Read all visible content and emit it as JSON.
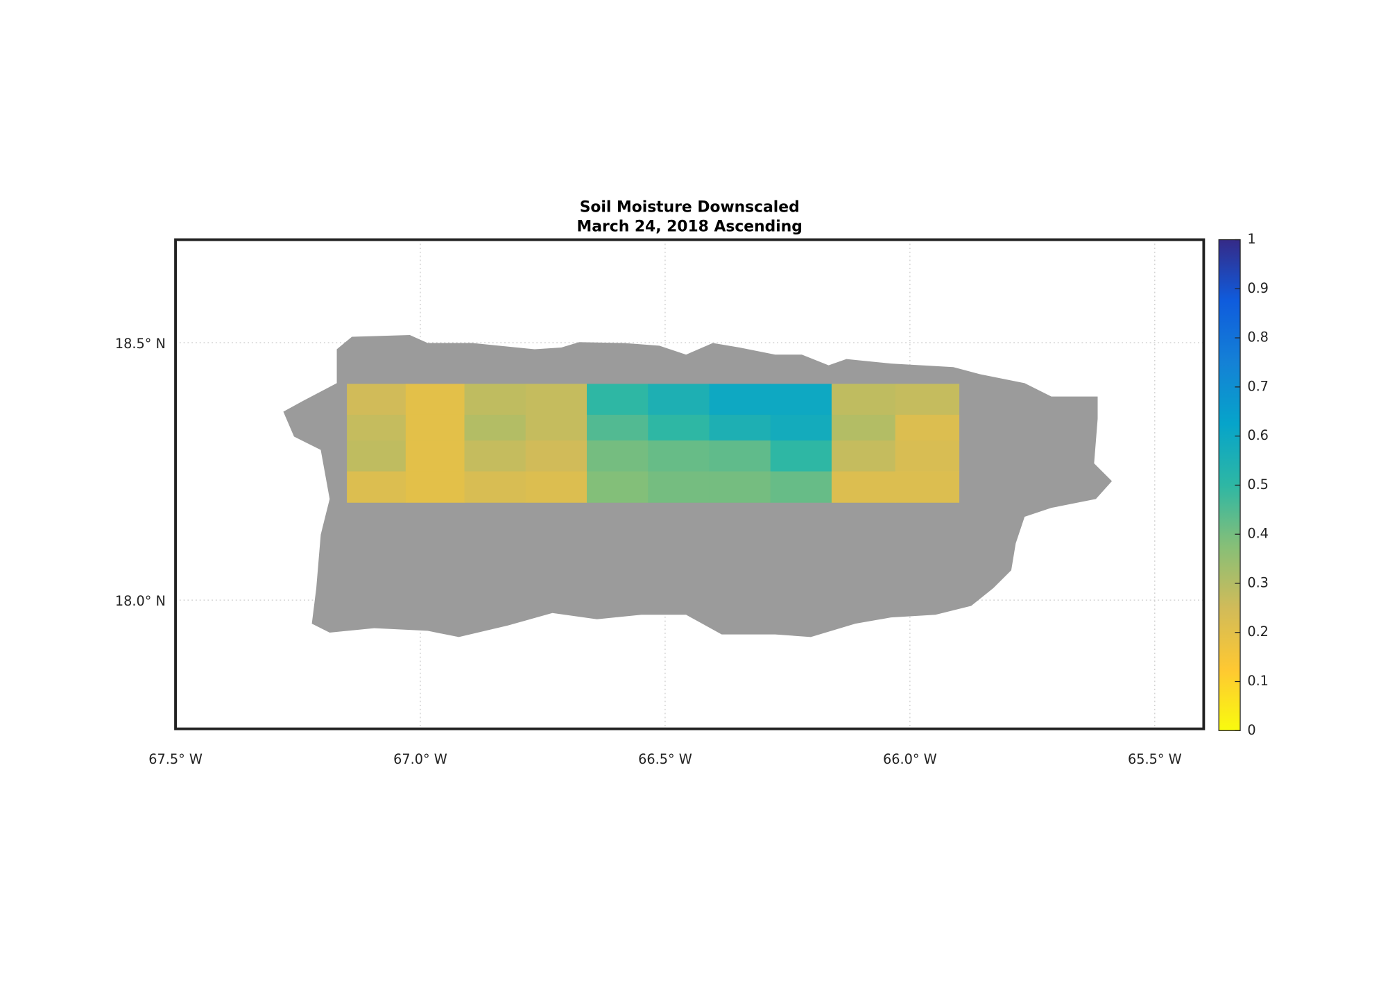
{
  "chart_data": {
    "type": "grid-map",
    "title": [
      "Soil Moisture Downscaled",
      "March 24, 2018 Ascending"
    ],
    "xlim": [
      -67.5,
      -65.4
    ],
    "ylim": [
      17.75,
      18.7
    ],
    "xticks": [
      {
        "value": -67.5,
        "label": "67.5° W"
      },
      {
        "value": -67.0,
        "label": "67.0° W"
      },
      {
        "value": -66.5,
        "label": "66.5° W"
      },
      {
        "value": -66.0,
        "label": "66.0° W"
      },
      {
        "value": -65.5,
        "label": "65.5° W"
      }
    ],
    "yticks": [
      {
        "value": 18.0,
        "label": "18.0° N"
      },
      {
        "value": 18.5,
        "label": "18.5° N"
      }
    ],
    "grid": true,
    "land_color": "#9b9b9b",
    "cells": {
      "lon_edges": [
        -67.15,
        -67.03,
        -66.91,
        -66.785,
        -66.66,
        -66.535,
        -66.41,
        -66.285,
        -66.16,
        -66.03,
        -65.9
      ],
      "lat_edges": [
        18.42,
        18.36,
        18.31,
        18.25,
        18.19
      ],
      "values": [
        [
          0.25,
          0.2,
          0.28,
          0.27,
          0.5,
          0.55,
          0.6,
          0.6,
          0.28,
          0.27
        ],
        [
          0.27,
          0.2,
          0.3,
          0.27,
          0.45,
          0.5,
          0.55,
          0.58,
          0.3,
          0.22
        ],
        [
          0.28,
          0.2,
          0.27,
          0.25,
          0.4,
          0.42,
          0.43,
          0.5,
          0.27,
          0.23
        ],
        [
          0.22,
          0.2,
          0.23,
          0.22,
          0.38,
          0.4,
          0.4,
          0.42,
          0.22,
          0.22
        ]
      ]
    },
    "clim": [
      0,
      1
    ],
    "cticks": [
      0,
      0.1,
      0.2,
      0.3,
      0.4,
      0.5,
      0.6,
      0.7,
      0.8,
      0.9,
      1
    ],
    "colormap": [
      "#f9fb0e",
      "#fec832",
      "#d1bb59",
      "#87bf77",
      "#2eb7a4",
      "#06a4ca",
      "#1481d6",
      "#0f5cdd",
      "#352a87"
    ]
  }
}
